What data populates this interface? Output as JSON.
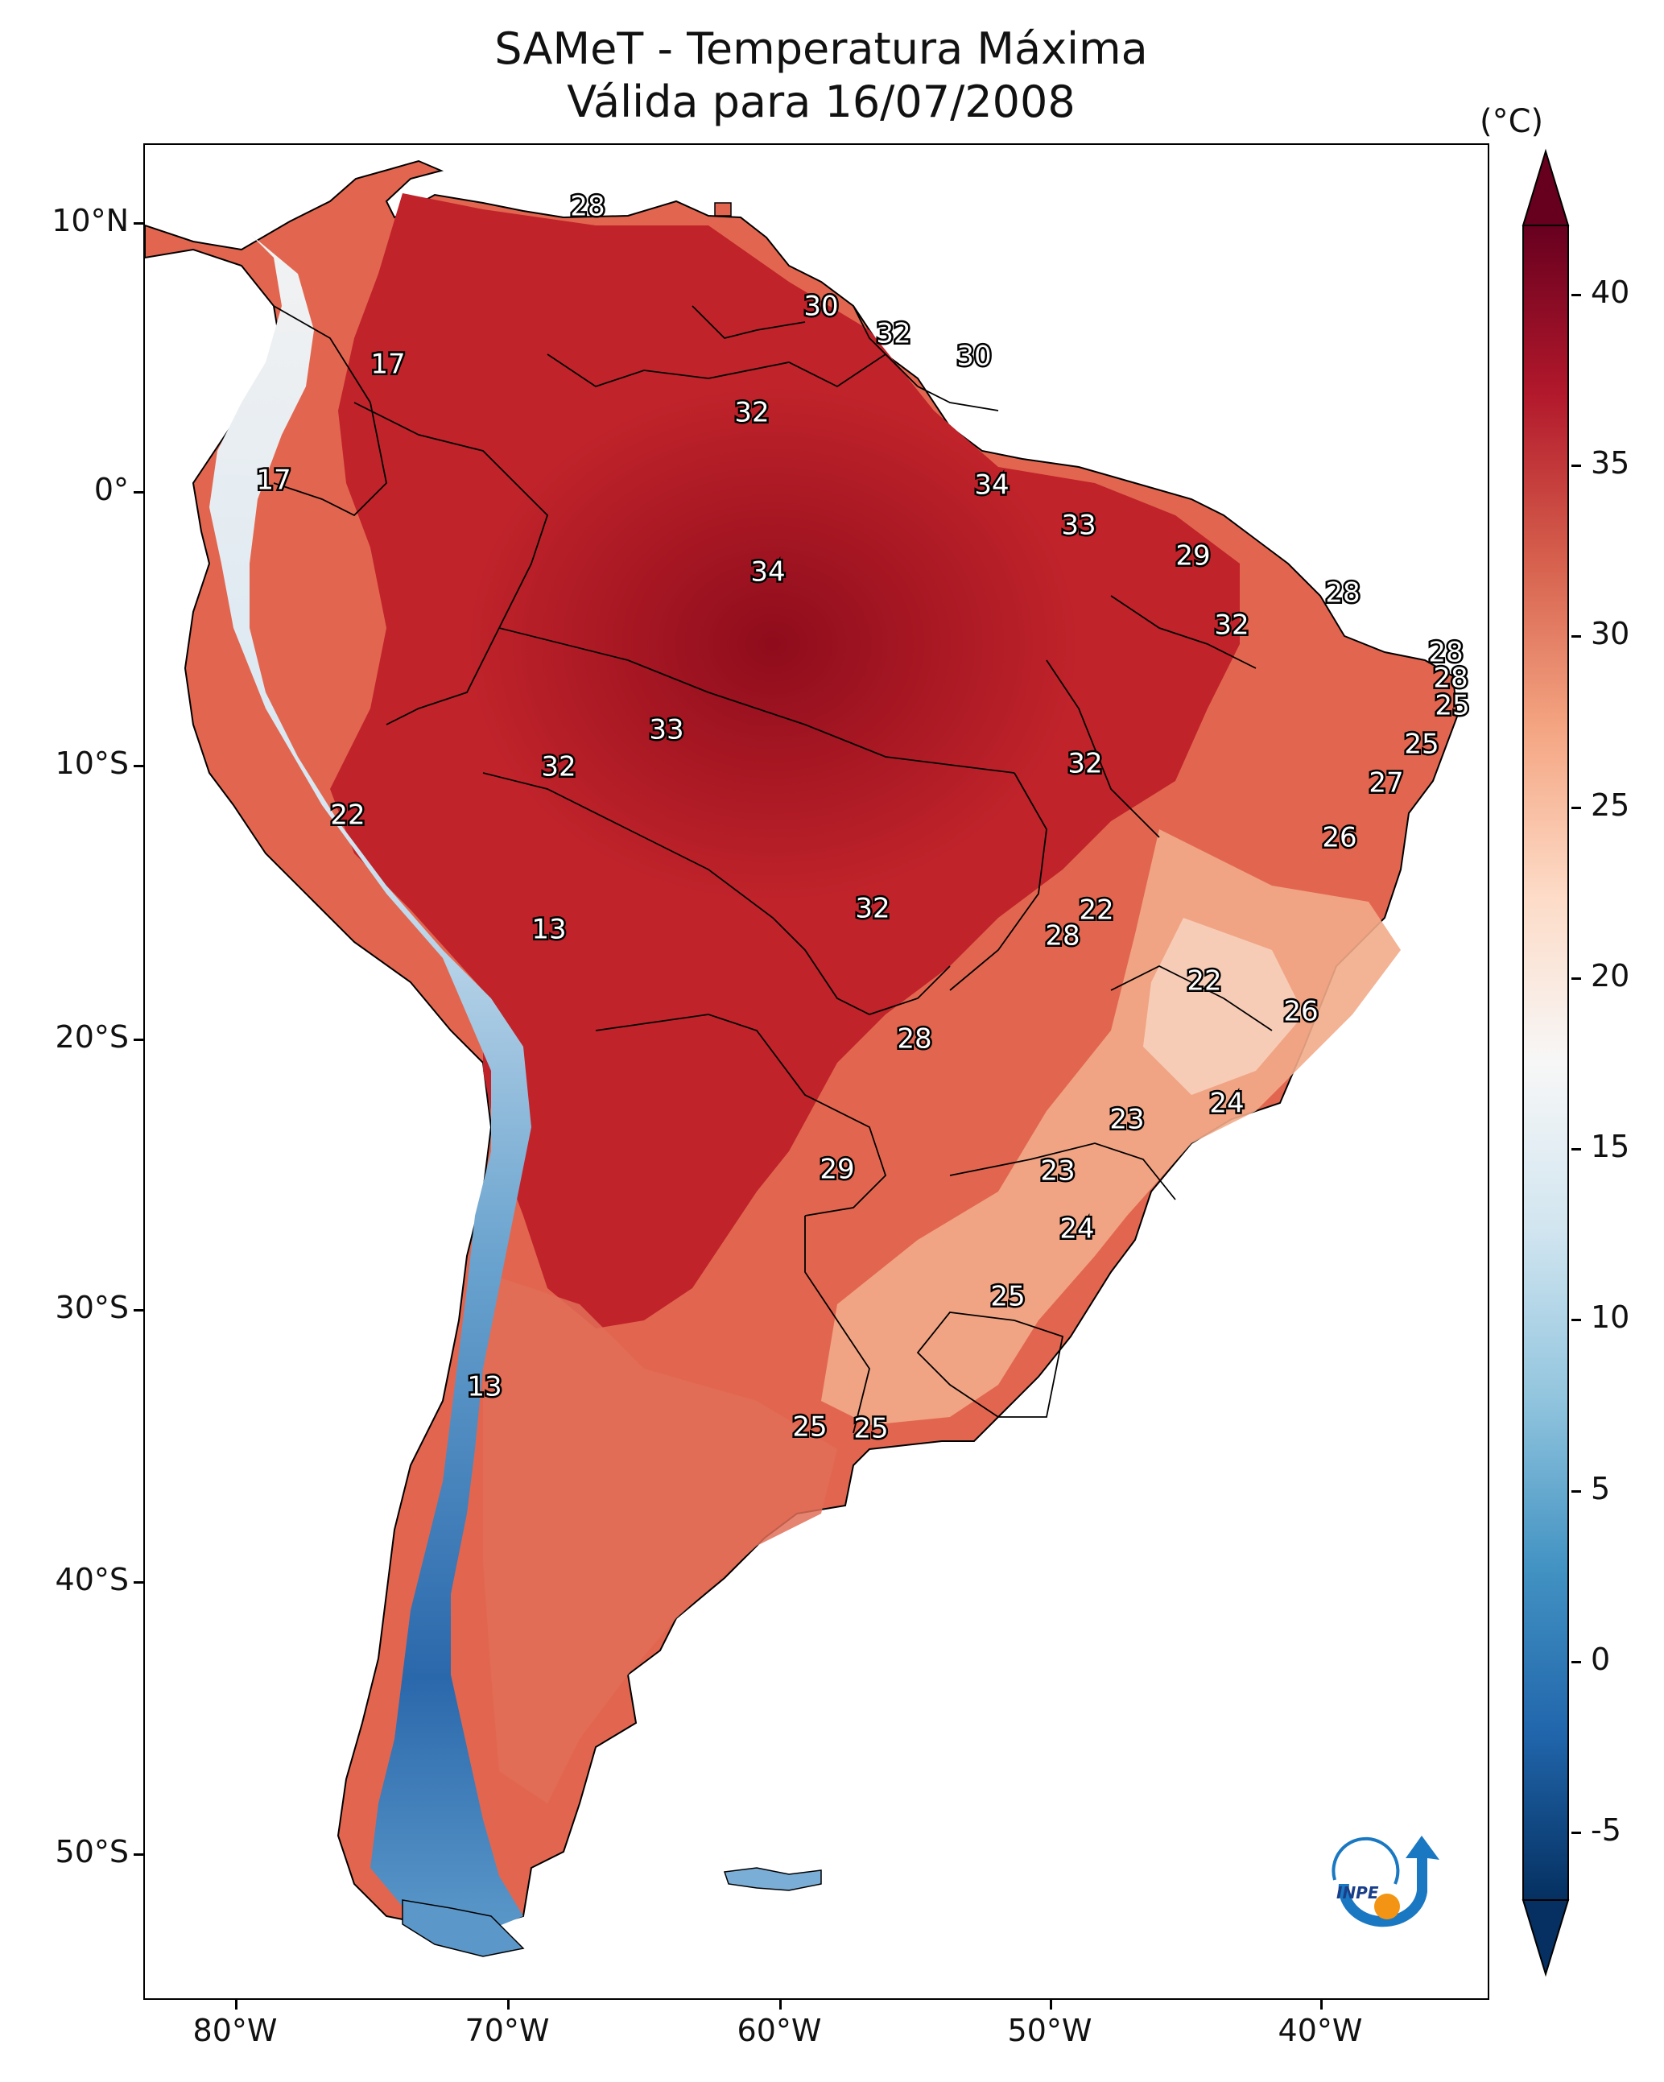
{
  "title": {
    "line1": "SAMeT - Temperatura Máxima",
    "line2": "Válida para 16/07/2008"
  },
  "map": {
    "lat_ticks": [
      "10°N",
      "0°",
      "10°S",
      "20°S",
      "30°S",
      "40°S",
      "50°S"
    ],
    "lon_ticks": [
      "80°W",
      "70°W",
      "60°W",
      "50°W",
      "40°W"
    ],
    "contour_labels": [
      {
        "text": "28"
      },
      {
        "text": "30"
      },
      {
        "text": "32"
      },
      {
        "text": "30"
      },
      {
        "text": "17"
      },
      {
        "text": "32"
      },
      {
        "text": "17"
      },
      {
        "text": "34"
      },
      {
        "text": "33"
      },
      {
        "text": "34"
      },
      {
        "text": "29"
      },
      {
        "text": "28"
      },
      {
        "text": "32"
      },
      {
        "text": "28"
      },
      {
        "text": "28"
      },
      {
        "text": "25"
      },
      {
        "text": "33"
      },
      {
        "text": "25"
      },
      {
        "text": "32"
      },
      {
        "text": "32"
      },
      {
        "text": "27"
      },
      {
        "text": "22"
      },
      {
        "text": "26"
      },
      {
        "text": "13"
      },
      {
        "text": "22"
      },
      {
        "text": "32"
      },
      {
        "text": "28"
      },
      {
        "text": "22"
      },
      {
        "text": "26"
      },
      {
        "text": "28"
      },
      {
        "text": "24"
      },
      {
        "text": "23"
      },
      {
        "text": "29"
      },
      {
        "text": "23"
      },
      {
        "text": "24"
      },
      {
        "text": "25"
      },
      {
        "text": "13"
      },
      {
        "text": "25"
      },
      {
        "text": "25"
      }
    ],
    "colors": {
      "hot": "#c0232a",
      "very_hot": "#a5101f",
      "warm": "#e88a6a",
      "mild": "#f6c8ad",
      "cool": "#d6e6f2",
      "cold": "#6ba4cf",
      "very_cold": "#2a68ac",
      "border": "#000000"
    },
    "logo_text": "INPE"
  },
  "colorbar": {
    "unit": "(°C)",
    "ticks": [
      "40",
      "35",
      "30",
      "25",
      "20",
      "15",
      "10",
      "5",
      "0",
      "-5"
    ],
    "min": -7,
    "max": 42,
    "stops": [
      "#053061",
      "#2166ac",
      "#4393c3",
      "#92c5de",
      "#d1e5f0",
      "#f7f7f7",
      "#fddbc7",
      "#f4a582",
      "#d6604d",
      "#b2182b",
      "#67001f"
    ]
  }
}
